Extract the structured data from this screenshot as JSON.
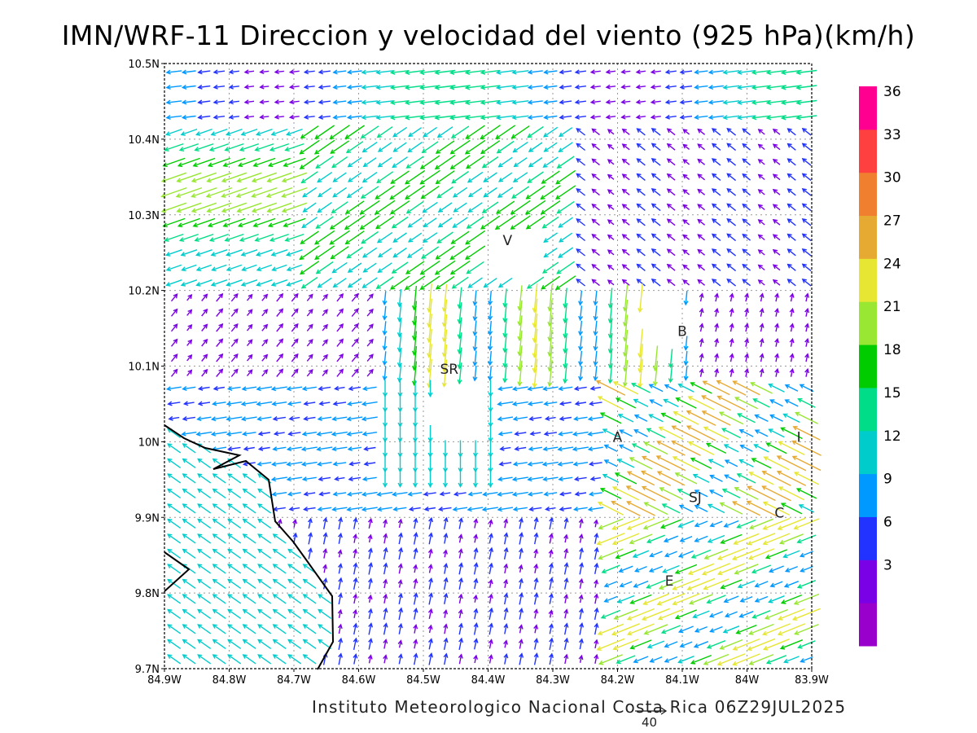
{
  "title": "IMN/WRF-11 Direccion y velocidad del viento (925 hPa)(km/h)",
  "footer": "Instituto Meteorologico Nacional Costa Rica 06Z29JUL2025",
  "reference_vector": {
    "label": "40",
    "speed": 40
  },
  "map": {
    "lon_range": [
      -84.9,
      -83.9
    ],
    "lat_range": [
      9.7,
      10.5
    ],
    "x_ticks": [
      "84.9W",
      "84.8W",
      "84.7W",
      "84.6W",
      "84.5W",
      "84.4W",
      "84.3W",
      "84.2W",
      "84.1W",
      "84W",
      "83.9W"
    ],
    "y_ticks": [
      "10.5N",
      "10.4N",
      "10.3N",
      "10.2N",
      "10.1N",
      "10N",
      "9.9N",
      "9.8N",
      "9.7N"
    ],
    "grid": true,
    "places": [
      {
        "label": "V",
        "lon": -84.37,
        "lat": 10.26
      },
      {
        "label": "B",
        "lon": -84.1,
        "lat": 10.14
      },
      {
        "label": "SR",
        "lon": -84.46,
        "lat": 10.09
      },
      {
        "label": "A",
        "lon": -84.2,
        "lat": 10.0
      },
      {
        "label": "I",
        "lon": -83.92,
        "lat": 10.0
      },
      {
        "label": "SJ",
        "lon": -84.08,
        "lat": 9.92
      },
      {
        "label": "C",
        "lon": -83.95,
        "lat": 9.9
      },
      {
        "label": "E",
        "lon": -84.12,
        "lat": 9.81
      }
    ]
  },
  "colorbar": {
    "labels": [
      "36",
      "33",
      "30",
      "27",
      "24",
      "21",
      "18",
      "15",
      "12",
      "9",
      "6",
      "3"
    ],
    "colors": [
      "#9900cc",
      "#7a00e6",
      "#2233ff",
      "#0099ff",
      "#00cccc",
      "#00dd88",
      "#00cc00",
      "#99e633",
      "#e6e633",
      "#e6aa33",
      "#f08030",
      "#ff4040",
      "#ff0090"
    ]
  }
}
